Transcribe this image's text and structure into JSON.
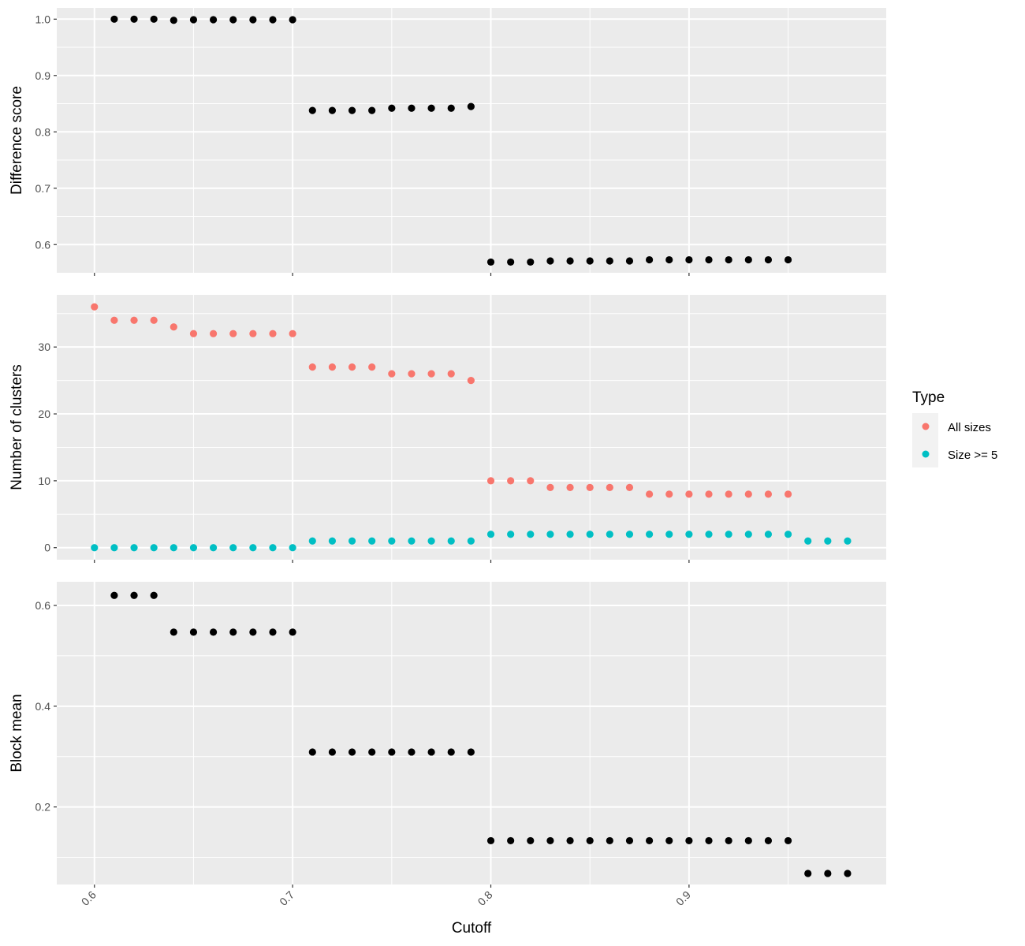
{
  "chart_data": [
    {
      "type": "scatter",
      "ylabel": "Difference score",
      "ylim": [
        0.55,
        1.02
      ],
      "yticks": [
        0.6,
        0.7,
        0.8,
        0.9,
        1.0
      ],
      "ytick_labels": [
        "0.6",
        "0.7",
        "0.8",
        "0.9",
        "1.0"
      ],
      "series": [
        {
          "color": "#000000",
          "x": [
            0.61,
            0.62,
            0.63,
            0.64,
            0.65,
            0.66,
            0.67,
            0.68,
            0.69,
            0.7,
            0.71,
            0.72,
            0.73,
            0.74,
            0.75,
            0.76,
            0.77,
            0.78,
            0.79,
            0.8,
            0.81,
            0.82,
            0.83,
            0.84,
            0.85,
            0.86,
            0.87,
            0.88,
            0.89,
            0.9,
            0.91,
            0.92,
            0.93,
            0.94,
            0.95
          ],
          "y": [
            1.0,
            1.0,
            1.0,
            0.998,
            0.999,
            0.999,
            0.999,
            0.999,
            0.999,
            0.999,
            0.838,
            0.838,
            0.838,
            0.838,
            0.842,
            0.842,
            0.842,
            0.842,
            0.845,
            0.569,
            0.569,
            0.569,
            0.571,
            0.571,
            0.571,
            0.571,
            0.571,
            0.573,
            0.573,
            0.573,
            0.573,
            0.573,
            0.573,
            0.573,
            0.573
          ]
        }
      ]
    },
    {
      "type": "scatter",
      "ylabel": "Number of clusters",
      "ylim": [
        -1.8,
        37.8
      ],
      "yticks": [
        0,
        10,
        20,
        30
      ],
      "ytick_labels": [
        "0",
        "10",
        "20",
        "30"
      ],
      "legend": {
        "title": "Type",
        "position": "right"
      },
      "series": [
        {
          "name": "All sizes",
          "color": "#F8766D",
          "x": [
            0.6,
            0.61,
            0.62,
            0.63,
            0.64,
            0.65,
            0.66,
            0.67,
            0.68,
            0.69,
            0.7,
            0.71,
            0.72,
            0.73,
            0.74,
            0.75,
            0.76,
            0.77,
            0.78,
            0.79,
            0.8,
            0.81,
            0.82,
            0.83,
            0.84,
            0.85,
            0.86,
            0.87,
            0.88,
            0.89,
            0.9,
            0.91,
            0.92,
            0.93,
            0.94,
            0.95
          ],
          "y": [
            36,
            34,
            34,
            34,
            33,
            32,
            32,
            32,
            32,
            32,
            32,
            27,
            27,
            27,
            27,
            26,
            26,
            26,
            26,
            25,
            10,
            10,
            10,
            9,
            9,
            9,
            9,
            9,
            8,
            8,
            8,
            8,
            8,
            8,
            8,
            8
          ]
        },
        {
          "name": "Size >= 5",
          "color": "#00BFC4",
          "x": [
            0.6,
            0.61,
            0.62,
            0.63,
            0.64,
            0.65,
            0.66,
            0.67,
            0.68,
            0.69,
            0.7,
            0.71,
            0.72,
            0.73,
            0.74,
            0.75,
            0.76,
            0.77,
            0.78,
            0.79,
            0.8,
            0.81,
            0.82,
            0.83,
            0.84,
            0.85,
            0.86,
            0.87,
            0.88,
            0.89,
            0.9,
            0.91,
            0.92,
            0.93,
            0.94,
            0.95,
            0.96,
            0.97,
            0.98
          ],
          "y": [
            0,
            0,
            0,
            0,
            0,
            0,
            0,
            0,
            0,
            0,
            0,
            1,
            1,
            1,
            1,
            1,
            1,
            1,
            1,
            1,
            2,
            2,
            2,
            2,
            2,
            2,
            2,
            2,
            2,
            2,
            2,
            2,
            2,
            2,
            2,
            2,
            1,
            1,
            1
          ]
        }
      ]
    },
    {
      "type": "scatter",
      "ylabel": "Block mean",
      "xlabel": "Cutoff",
      "ylim": [
        0.046,
        0.647
      ],
      "yticks": [
        0.2,
        0.4,
        0.6
      ],
      "ytick_labels": [
        "0.2",
        "0.4",
        "0.6"
      ],
      "series": [
        {
          "color": "#000000",
          "x": [
            0.61,
            0.62,
            0.63,
            0.64,
            0.65,
            0.66,
            0.67,
            0.68,
            0.69,
            0.7,
            0.71,
            0.72,
            0.73,
            0.74,
            0.75,
            0.76,
            0.77,
            0.78,
            0.79,
            0.8,
            0.81,
            0.82,
            0.83,
            0.84,
            0.85,
            0.86,
            0.87,
            0.88,
            0.89,
            0.9,
            0.91,
            0.92,
            0.93,
            0.94,
            0.95,
            0.96,
            0.97,
            0.98
          ],
          "y": [
            0.62,
            0.62,
            0.62,
            0.547,
            0.547,
            0.547,
            0.547,
            0.547,
            0.547,
            0.547,
            0.309,
            0.309,
            0.309,
            0.309,
            0.309,
            0.309,
            0.309,
            0.309,
            0.309,
            0.133,
            0.133,
            0.133,
            0.133,
            0.133,
            0.133,
            0.133,
            0.133,
            0.133,
            0.133,
            0.133,
            0.133,
            0.133,
            0.133,
            0.133,
            0.133,
            0.068,
            0.068,
            0.068
          ]
        }
      ]
    }
  ],
  "x_axis": {
    "title": "Cutoff",
    "xlim": [
      0.581,
      0.9995
    ],
    "ticks": [
      0.6,
      0.7,
      0.8,
      0.9
    ],
    "tick_labels": [
      "0.6",
      "0.7",
      "0.8",
      "0.9"
    ]
  },
  "legend": {
    "title": "Type",
    "items": [
      {
        "label": "All sizes",
        "color": "#F8766D"
      },
      {
        "label": "Size >= 5",
        "color": "#00BFC4"
      }
    ]
  },
  "theme": {
    "panel_background": "#EBEBEB",
    "grid_color": "#FFFFFF",
    "tick_color": "#333333"
  }
}
